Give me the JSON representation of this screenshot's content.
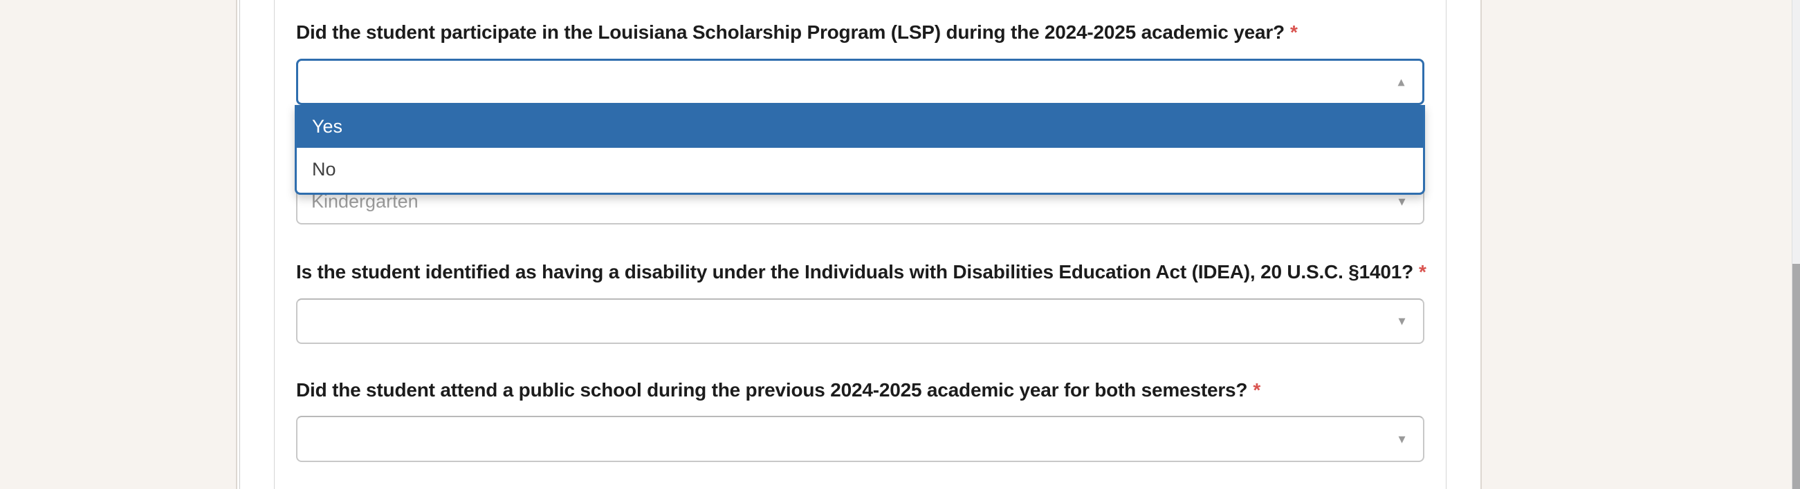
{
  "colors": {
    "page_background": "#f7f3ef",
    "accent_blue": "#2f6eae",
    "option_highlight_blue": "#2f6cab",
    "required_red": "#d9534f",
    "muted_value_gray": "#9b9b9b"
  },
  "icons": {
    "caret_up": "▲",
    "caret_down": "▼"
  },
  "lsp_question": {
    "label": "Did the student participate in the Louisiana Scholarship Program (LSP) during the 2024-2025 academic year?",
    "required_mark": "*",
    "selected_value": "",
    "state": "open",
    "options": [
      "Yes",
      "No"
    ],
    "highlighted_option": "Yes"
  },
  "grade_field": {
    "value": "Kindergarten"
  },
  "idea_question": {
    "label": "Is the student identified as having a disability under the Individuals with Disabilities Education Act (IDEA), 20 U.S.C. §1401?",
    "required_mark": "*",
    "selected_value": ""
  },
  "public_school_question": {
    "label": "Did the student attend a public school during the previous 2024-2025 academic year for both semesters?",
    "required_mark": "*",
    "selected_value": ""
  }
}
